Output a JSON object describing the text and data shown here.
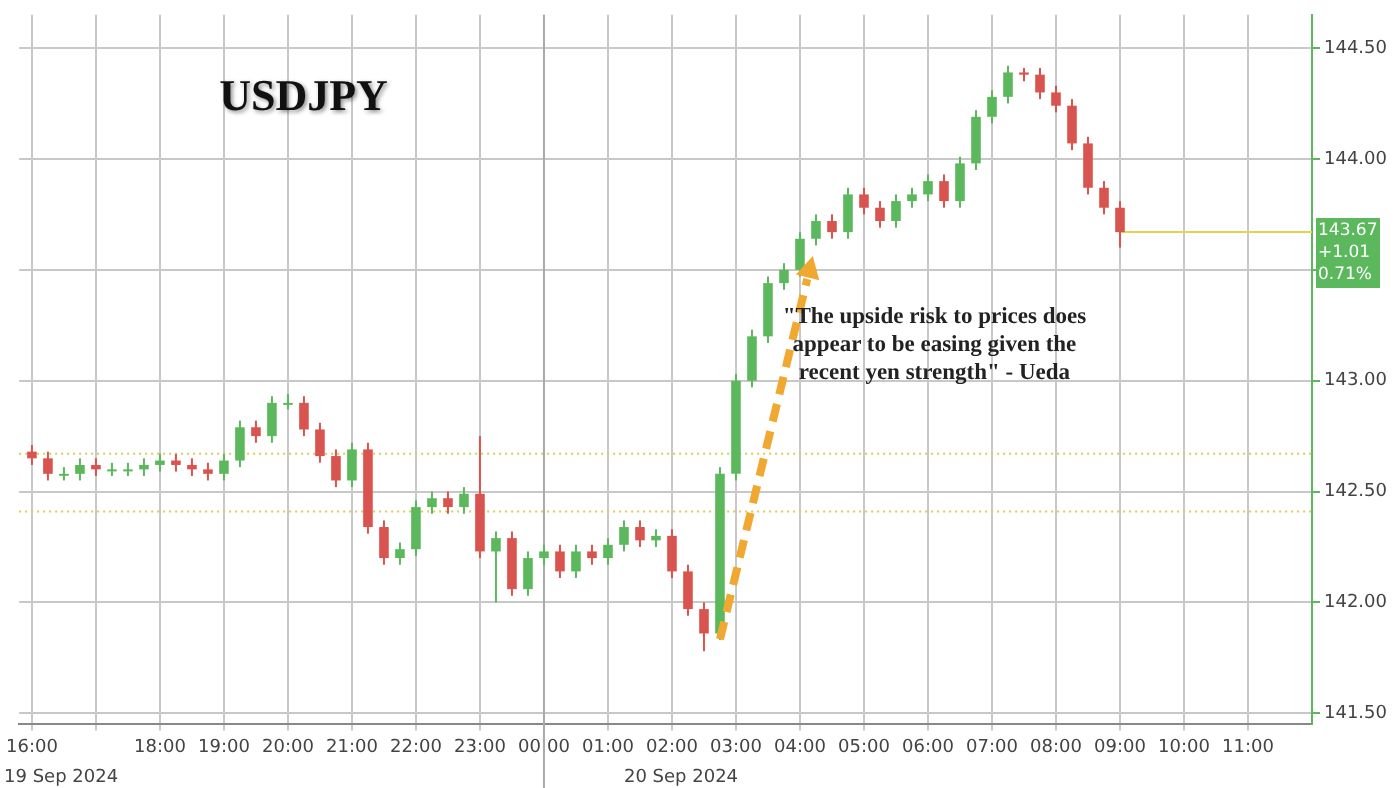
{
  "chart_data": {
    "type": "candlestick",
    "title": "USDJPY",
    "x": [
      "2024-09-19T16:00",
      "2024-09-19T16:15",
      "2024-09-19T16:30",
      "2024-09-19T16:45",
      "2024-09-19T17:00",
      "2024-09-19T17:15",
      "2024-09-19T17:30",
      "2024-09-19T17:45",
      "2024-09-19T18:00",
      "2024-09-19T18:15",
      "2024-09-19T18:30",
      "2024-09-19T18:45",
      "2024-09-19T19:00",
      "2024-09-19T19:15",
      "2024-09-19T19:30",
      "2024-09-19T19:45",
      "2024-09-19T20:00",
      "2024-09-19T20:15",
      "2024-09-19T20:30",
      "2024-09-19T20:45",
      "2024-09-19T21:00",
      "2024-09-19T21:15",
      "2024-09-19T21:30",
      "2024-09-19T21:45",
      "2024-09-19T22:00",
      "2024-09-19T22:15",
      "2024-09-19T22:30",
      "2024-09-19T22:45",
      "2024-09-19T23:00",
      "2024-09-19T23:15",
      "2024-09-19T23:30",
      "2024-09-19T23:45",
      "2024-09-20T00:00",
      "2024-09-20T00:15",
      "2024-09-20T00:30",
      "2024-09-20T00:45",
      "2024-09-20T01:00",
      "2024-09-20T01:15",
      "2024-09-20T01:30",
      "2024-09-20T01:45",
      "2024-09-20T02:00",
      "2024-09-20T02:15",
      "2024-09-20T02:30",
      "2024-09-20T02:45",
      "2024-09-20T03:00",
      "2024-09-20T03:15",
      "2024-09-20T03:30",
      "2024-09-20T03:45",
      "2024-09-20T04:00",
      "2024-09-20T04:15",
      "2024-09-20T04:30",
      "2024-09-20T04:45",
      "2024-09-20T05:00",
      "2024-09-20T05:15",
      "2024-09-20T05:30",
      "2024-09-20T05:45",
      "2024-09-20T06:00",
      "2024-09-20T06:15",
      "2024-09-20T06:30",
      "2024-09-20T06:45",
      "2024-09-20T07:00",
      "2024-09-20T07:15",
      "2024-09-20T07:30",
      "2024-09-20T07:45",
      "2024-09-20T08:00",
      "2024-09-20T08:15",
      "2024-09-20T08:30",
      "2024-09-20T08:45",
      "2024-09-20T09:00"
    ],
    "ohlc": [
      [
        142.68,
        142.71,
        142.62,
        142.65
      ],
      [
        142.65,
        142.68,
        142.55,
        142.58
      ],
      [
        142.58,
        142.61,
        142.55,
        142.58
      ],
      [
        142.58,
        142.65,
        142.55,
        142.62
      ],
      [
        142.62,
        142.65,
        142.57,
        142.6
      ],
      [
        142.6,
        142.63,
        142.57,
        142.6
      ],
      [
        142.6,
        142.63,
        142.57,
        142.6
      ],
      [
        142.6,
        142.65,
        142.57,
        142.62
      ],
      [
        142.62,
        142.67,
        142.59,
        142.64
      ],
      [
        142.64,
        142.67,
        142.59,
        142.62
      ],
      [
        142.62,
        142.65,
        142.57,
        142.6
      ],
      [
        142.6,
        142.63,
        142.55,
        142.58
      ],
      [
        142.58,
        142.67,
        142.55,
        142.64
      ],
      [
        142.64,
        142.82,
        142.61,
        142.79
      ],
      [
        142.79,
        142.82,
        142.72,
        142.75
      ],
      [
        142.75,
        142.93,
        142.72,
        142.9
      ],
      [
        142.9,
        142.94,
        142.87,
        142.9
      ],
      [
        142.9,
        142.93,
        142.75,
        142.78
      ],
      [
        142.78,
        142.81,
        142.63,
        142.66
      ],
      [
        142.66,
        142.69,
        142.52,
        142.55
      ],
      [
        142.55,
        142.72,
        142.52,
        142.69
      ],
      [
        142.69,
        142.72,
        142.31,
        142.34
      ],
      [
        142.34,
        142.37,
        142.17,
        142.2
      ],
      [
        142.2,
        142.27,
        142.17,
        142.24
      ],
      [
        142.24,
        142.46,
        142.21,
        142.43
      ],
      [
        142.43,
        142.5,
        142.4,
        142.47
      ],
      [
        142.47,
        142.5,
        142.4,
        142.43
      ],
      [
        142.43,
        142.52,
        142.4,
        142.49
      ],
      [
        142.49,
        142.75,
        142.2,
        142.23
      ],
      [
        142.23,
        142.32,
        142.0,
        142.29
      ],
      [
        142.29,
        142.32,
        142.03,
        142.06
      ],
      [
        142.06,
        142.23,
        142.03,
        142.2
      ],
      [
        142.2,
        142.26,
        142.17,
        142.23
      ],
      [
        142.23,
        142.26,
        142.11,
        142.14
      ],
      [
        142.14,
        142.26,
        142.11,
        142.23
      ],
      [
        142.23,
        142.26,
        142.17,
        142.2
      ],
      [
        142.2,
        142.29,
        142.17,
        142.26
      ],
      [
        142.26,
        142.37,
        142.23,
        142.34
      ],
      [
        142.34,
        142.37,
        142.25,
        142.28
      ],
      [
        142.28,
        142.33,
        142.25,
        142.3
      ],
      [
        142.3,
        142.33,
        142.11,
        142.14
      ],
      [
        142.14,
        142.17,
        141.94,
        141.97
      ],
      [
        141.97,
        142.0,
        141.78,
        141.86
      ],
      [
        141.86,
        142.61,
        141.83,
        142.58
      ],
      [
        142.58,
        143.03,
        142.55,
        143.0
      ],
      [
        143.0,
        143.23,
        142.97,
        143.2
      ],
      [
        143.2,
        143.47,
        143.17,
        143.44
      ],
      [
        143.44,
        143.53,
        143.41,
        143.5
      ],
      [
        143.5,
        143.67,
        143.47,
        143.64
      ],
      [
        143.64,
        143.75,
        143.61,
        143.72
      ],
      [
        143.72,
        143.75,
        143.64,
        143.67
      ],
      [
        143.67,
        143.87,
        143.64,
        143.84
      ],
      [
        143.84,
        143.87,
        143.75,
        143.78
      ],
      [
        143.78,
        143.81,
        143.69,
        143.72
      ],
      [
        143.72,
        143.84,
        143.69,
        143.81
      ],
      [
        143.81,
        143.87,
        143.78,
        143.84
      ],
      [
        143.84,
        143.93,
        143.81,
        143.9
      ],
      [
        143.9,
        143.93,
        143.78,
        143.81
      ],
      [
        143.81,
        144.01,
        143.78,
        143.98
      ],
      [
        143.98,
        144.22,
        143.95,
        144.19
      ],
      [
        144.19,
        144.31,
        144.16,
        144.28
      ],
      [
        144.28,
        144.42,
        144.25,
        144.39
      ],
      [
        144.39,
        144.41,
        144.35,
        144.38
      ],
      [
        144.38,
        144.41,
        144.27,
        144.3
      ],
      [
        144.3,
        144.33,
        144.21,
        144.24
      ],
      [
        144.24,
        144.27,
        144.04,
        144.07
      ],
      [
        144.07,
        144.1,
        143.84,
        143.87
      ],
      [
        143.87,
        143.9,
        143.75,
        143.78
      ],
      [
        143.78,
        143.81,
        143.6,
        143.67
      ]
    ],
    "xlim": [
      "2024-09-19T15:48",
      "2024-09-20T12:00"
    ],
    "xticks": [
      {
        "value": "2024-09-19T16:00",
        "label": "16:00"
      },
      {
        "value": "2024-09-19T17:00",
        "label": null
      },
      {
        "value": "2024-09-19T18:00",
        "label": "18:00"
      },
      {
        "value": "2024-09-19T19:00",
        "label": "19:00"
      },
      {
        "value": "2024-09-19T20:00",
        "label": "20:00"
      },
      {
        "value": "2024-09-19T21:00",
        "label": "21:00"
      },
      {
        "value": "2024-09-19T22:00",
        "label": "22:00"
      },
      {
        "value": "2024-09-19T23:00",
        "label": "23:00"
      },
      {
        "value": "2024-09-20T00:00",
        "label": "00:00"
      },
      {
        "value": "2024-09-20T01:00",
        "label": "01:00"
      },
      {
        "value": "2024-09-20T02:00",
        "label": "02:00"
      },
      {
        "value": "2024-09-20T03:00",
        "label": "03:00"
      },
      {
        "value": "2024-09-20T04:00",
        "label": "04:00"
      },
      {
        "value": "2024-09-20T05:00",
        "label": "05:00"
      },
      {
        "value": "2024-09-20T06:00",
        "label": "06:00"
      },
      {
        "value": "2024-09-20T07:00",
        "label": "07:00"
      },
      {
        "value": "2024-09-20T08:00",
        "label": "08:00"
      },
      {
        "value": "2024-09-20T09:00",
        "label": "09:00"
      },
      {
        "value": "2024-09-20T10:00",
        "label": "10:00"
      },
      {
        "value": "2024-09-20T11:00",
        "label": "11:00"
      }
    ],
    "ylim": [
      141.45,
      144.65
    ],
    "yticks": [
      {
        "value": 141.5,
        "label": "141.50"
      },
      {
        "value": 142,
        "label": "142.00"
      },
      {
        "value": 142.5,
        "label": "142.50"
      },
      {
        "value": 143,
        "label": "143.00"
      },
      {
        "value": 143.5,
        "label": null
      },
      {
        "value": 144,
        "label": "144.00"
      },
      {
        "value": 144.5,
        "label": "144.50"
      }
    ],
    "grid": true,
    "ref_lines": [
      {
        "axis": "y",
        "value": 142.67,
        "color": "#d8cc55",
        "line_style": "dotted"
      },
      {
        "axis": "y",
        "value": 142.41,
        "color": "#d8cc55",
        "line_style": "dotted"
      },
      {
        "axis": "y",
        "value": 143.67,
        "color": "#e8d050",
        "line_style": "solid",
        "label": "143.67\n+1.01\n0.71%"
      },
      {
        "axis": "x",
        "value": "2024-09-20T00:00",
        "color": "#aaaaaa",
        "line_style": "solid"
      }
    ],
    "annotations": [
      "\"The upside risk to prices does appear to be easing given the recent yen strength\" - Ueda",
      "19 Sep 2024",
      "20 Sep 2024"
    ]
  }
}
